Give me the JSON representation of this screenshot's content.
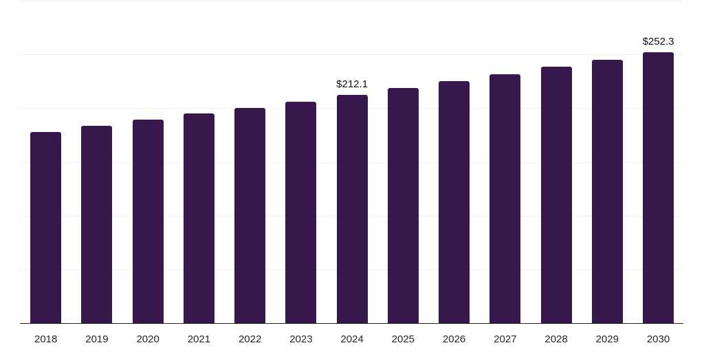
{
  "chart_data": {
    "type": "bar",
    "title": "",
    "xlabel": "",
    "ylabel": "",
    "categories": [
      "2018",
      "2019",
      "2020",
      "2021",
      "2022",
      "2023",
      "2024",
      "2025",
      "2026",
      "2027",
      "2028",
      "2029",
      "2030"
    ],
    "values": [
      178.0,
      183.6,
      189.2,
      195.0,
      200.4,
      206.0,
      212.1,
      218.5,
      225.2,
      231.4,
      238.5,
      245.1,
      252.3
    ],
    "value_labels": {
      "2024": "$212.1",
      "2030": "$252.3"
    },
    "ylim": [
      0,
      300
    ],
    "gridline_values": [
      50,
      100,
      150,
      200,
      250,
      300
    ],
    "grid": true,
    "legend": false,
    "y_axis_labels_visible": false,
    "colors": {
      "bar": "#37174C",
      "axis_line": "#1f1f1f",
      "gridline": "#efefef",
      "value_label": "#111111",
      "tick_label": "#262626",
      "background": "#ffffff"
    }
  }
}
